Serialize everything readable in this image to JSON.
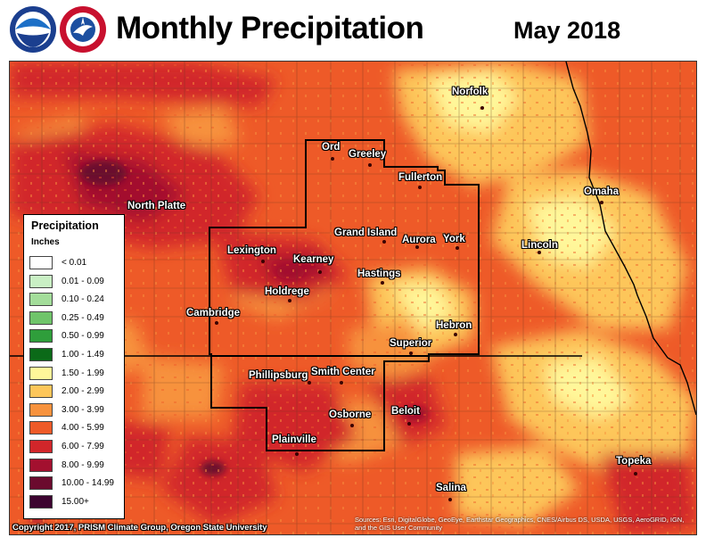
{
  "header": {
    "title": "Monthly Precipitation",
    "period": "May 2018",
    "logos": [
      "noaa-logo",
      "national-weather-service-logo"
    ]
  },
  "legend": {
    "title": "Precipitation",
    "units": "Inches",
    "classes": [
      {
        "label": "< 0.01",
        "color": "#ffffff"
      },
      {
        "label": "0.01 - 0.09",
        "color": "#c9efc4"
      },
      {
        "label": "0.10 - 0.24",
        "color": "#a3dd9a"
      },
      {
        "label": "0.25 - 0.49",
        "color": "#6fc46a"
      },
      {
        "label": "0.50 - 0.99",
        "color": "#2f9e3b"
      },
      {
        "label": "1.00 - 1.49",
        "color": "#0b6a18"
      },
      {
        "label": "1.50 - 1.99",
        "color": "#fff79a"
      },
      {
        "label": "2.00 - 2.99",
        "color": "#fdc65a"
      },
      {
        "label": "3.00 - 3.99",
        "color": "#f7923d"
      },
      {
        "label": "4.00 - 5.99",
        "color": "#ee5a28"
      },
      {
        "label": "6.00 - 7.99",
        "color": "#d1262a"
      },
      {
        "label": "8.00 - 9.99",
        "color": "#a3102f"
      },
      {
        "label": "10.00 - 14.99",
        "color": "#6b0a2e"
      },
      {
        "label": "15.00+",
        "color": "#3d0430"
      }
    ]
  },
  "cities": [
    {
      "name": "Norfolk"
    },
    {
      "name": "Ord"
    },
    {
      "name": "Greeley"
    },
    {
      "name": "Fullerton"
    },
    {
      "name": "Omaha"
    },
    {
      "name": "North Platte"
    },
    {
      "name": "Grand Island"
    },
    {
      "name": "Aurora"
    },
    {
      "name": "York"
    },
    {
      "name": "Lincoln"
    },
    {
      "name": "Lexington"
    },
    {
      "name": "Kearney"
    },
    {
      "name": "Hastings"
    },
    {
      "name": "Holdrege"
    },
    {
      "name": "Cambridge"
    },
    {
      "name": "Hebron"
    },
    {
      "name": "Superior"
    },
    {
      "name": "Phillipsburg"
    },
    {
      "name": "Smith Center"
    },
    {
      "name": "Osborne"
    },
    {
      "name": "Beloit"
    },
    {
      "name": "Plainville"
    },
    {
      "name": "Topeka"
    },
    {
      "name": "Salina"
    }
  ],
  "footer": {
    "copyright": "Copyright 2017, PRISM Climate Group, Oregon State University",
    "sources": "Sources: Esri, DigitalGlobe, GeoEye, Earthstar Geographics, CNES/Airbus DS, USDA, USGS, AeroGRID, IGN, and the GIS User Community"
  },
  "colors": {
    "state_border": "#000000",
    "cwa_border": "#000000",
    "county_lines": "#7a4a2a"
  }
}
